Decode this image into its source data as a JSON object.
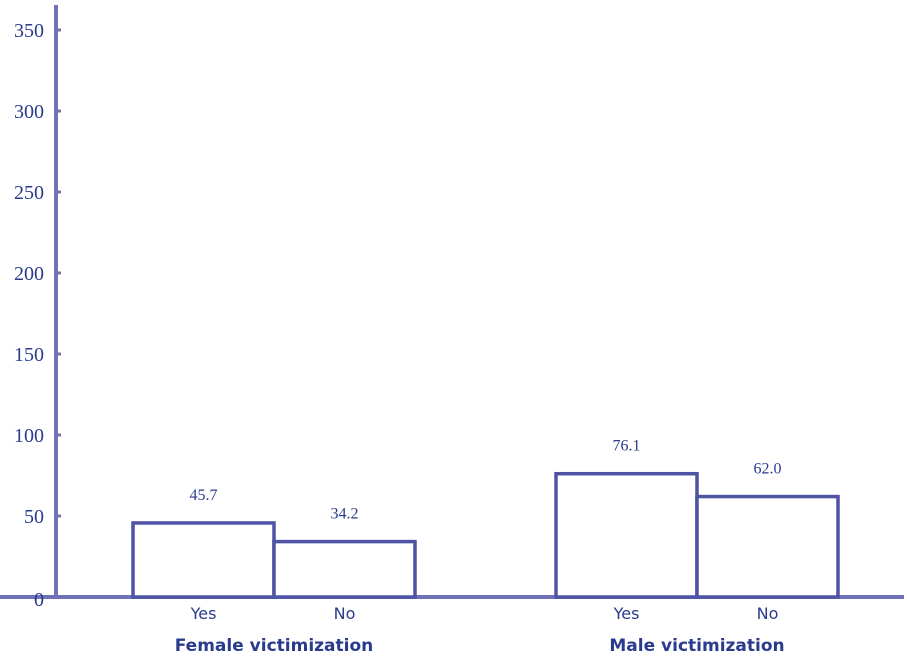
{
  "colors": {
    "axis": "#6f72b8",
    "bar_stroke": "#4f53a6",
    "bar_fill": "#ffffff",
    "text": "#2a3a8c"
  },
  "chart_data": {
    "type": "bar",
    "title": "",
    "xlabel": "",
    "ylabel": "",
    "ylim": [
      0,
      350
    ],
    "yticks": [
      0,
      50,
      100,
      150,
      200,
      250,
      300,
      350
    ],
    "grid": false,
    "groups": [
      {
        "label": "Female victimization",
        "categories": [
          "Yes",
          "No"
        ],
        "values": [
          45.7,
          34.2
        ],
        "value_labels": [
          "45.7",
          "34.2"
        ]
      },
      {
        "label": "Male victimization",
        "categories": [
          "Yes",
          "No"
        ],
        "values": [
          76.1,
          62.0
        ],
        "value_labels": [
          "76.1",
          "62.0"
        ]
      }
    ]
  }
}
